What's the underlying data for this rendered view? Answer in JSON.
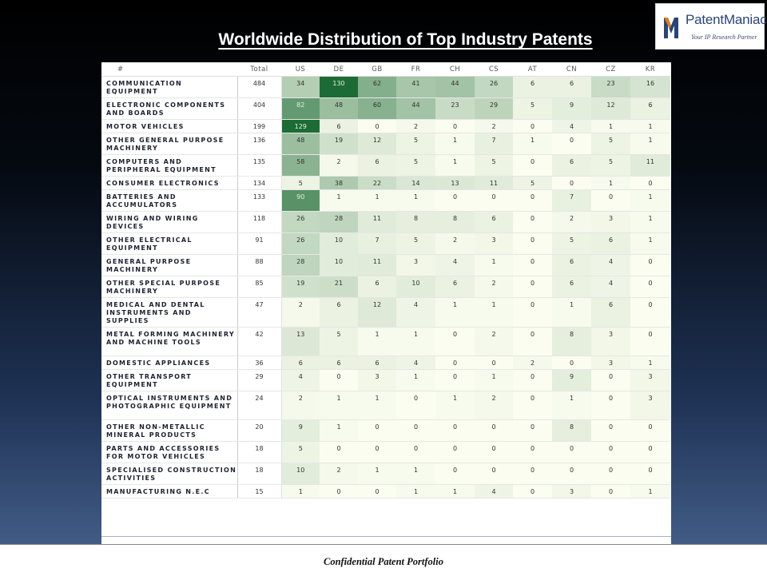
{
  "title": "Worldwide Distribution of Top Industry Patents",
  "logo": {
    "name": "PatentManiac",
    "tagline": "Your IP Research Partner"
  },
  "footer": "Confidential Patent Portfolio",
  "chart_data": {
    "type": "table",
    "title": "Worldwide Distribution of Top Industry Patents",
    "corner_header": "#",
    "total_header": "Total",
    "columns": [
      "US",
      "DE",
      "GB",
      "FR",
      "CH",
      "CS",
      "AT",
      "CN",
      "CZ",
      "KR"
    ],
    "rows": [
      {
        "industry": "COMMUNICATION EQUIPMENT",
        "total": "484",
        "values": [
          34,
          130,
          62,
          41,
          44,
          26,
          6,
          6,
          23,
          16
        ]
      },
      {
        "industry": "ELECTRONIC COMPONENTS AND BOARDS",
        "total": "404",
        "values": [
          82,
          48,
          60,
          44,
          23,
          29,
          5,
          9,
          12,
          6
        ]
      },
      {
        "industry": "MOTOR VEHICLES",
        "total": "199",
        "values": [
          129,
          6,
          0,
          2,
          0,
          2,
          0,
          4,
          1,
          1
        ]
      },
      {
        "industry": "OTHER GENERAL PURPOSE MACHINERY",
        "total": "136",
        "values": [
          48,
          19,
          12,
          5,
          1,
          7,
          1,
          0,
          5,
          1
        ]
      },
      {
        "industry": "COMPUTERS AND PERIPHERAL EQUIPMENT",
        "total": "135",
        "values": [
          58,
          2,
          6,
          5,
          1,
          5,
          0,
          6,
          5,
          11
        ]
      },
      {
        "industry": "CONSUMER ELECTRONICS",
        "total": "134",
        "values": [
          5,
          38,
          22,
          14,
          13,
          11,
          5,
          0,
          1,
          0
        ]
      },
      {
        "industry": "BATTERIES AND ACCUMULATORS",
        "total": "133",
        "values": [
          90,
          1,
          1,
          1,
          0,
          0,
          0,
          7,
          0,
          1
        ]
      },
      {
        "industry": "WIRING AND WIRING DEVICES",
        "total": "118",
        "values": [
          26,
          28,
          11,
          8,
          8,
          6,
          0,
          2,
          3,
          1
        ]
      },
      {
        "industry": "OTHER ELECTRICAL EQUIPMENT",
        "total": "91",
        "values": [
          26,
          10,
          7,
          5,
          2,
          3,
          0,
          5,
          6,
          1
        ]
      },
      {
        "industry": "GENERAL PURPOSE MACHINERY",
        "total": "88",
        "values": [
          28,
          10,
          11,
          3,
          4,
          1,
          0,
          6,
          4,
          0
        ]
      },
      {
        "industry": "OTHER SPECIAL PURPOSE MACHINERY",
        "total": "85",
        "values": [
          19,
          21,
          6,
          10,
          6,
          2,
          0,
          6,
          4,
          0
        ]
      },
      {
        "industry": "MEDICAL AND DENTAL INSTRUMENTS AND SUPPLIES",
        "total": "47",
        "values": [
          2,
          6,
          12,
          4,
          1,
          1,
          0,
          1,
          6,
          0
        ]
      },
      {
        "industry": "METAL FORMING MACHINERY AND MACHINE TOOLS",
        "total": "42",
        "values": [
          13,
          5,
          1,
          1,
          0,
          2,
          0,
          8,
          3,
          0
        ]
      },
      {
        "industry": "DOMESTIC APPLIANCES",
        "total": "36",
        "values": [
          6,
          6,
          6,
          4,
          0,
          0,
          2,
          0,
          3,
          1
        ]
      },
      {
        "industry": "OTHER TRANSPORT EQUIPMENT",
        "total": "29",
        "values": [
          4,
          0,
          3,
          1,
          0,
          1,
          0,
          9,
          0,
          3
        ]
      },
      {
        "industry": "OPTICAL INSTRUMENTS AND PHOTOGRAPHIC EQUIPMENT",
        "total": "24",
        "values": [
          2,
          1,
          1,
          0,
          1,
          2,
          0,
          1,
          0,
          3
        ]
      },
      {
        "industry": "OTHER NON-METALLIC MINERAL PRODUCTS",
        "total": "20",
        "values": [
          9,
          1,
          0,
          0,
          0,
          0,
          0,
          8,
          0,
          0
        ]
      },
      {
        "industry": "PARTS AND ACCESSORIES FOR MOTOR VEHICLES",
        "total": "18",
        "values": [
          5,
          0,
          0,
          0,
          0,
          0,
          0,
          0,
          0,
          0
        ]
      },
      {
        "industry": "SPECIALISED CONSTRUCTION ACTIVITIES",
        "total": "18",
        "values": [
          10,
          2,
          1,
          1,
          0,
          0,
          0,
          0,
          0,
          0
        ]
      },
      {
        "industry": "MANUFACTURING N.E.C",
        "total": "15",
        "values": [
          1,
          0,
          0,
          1,
          1,
          4,
          0,
          3,
          0,
          1
        ]
      }
    ],
    "color_scale": {
      "low": "#fbfdf0",
      "high": "#1c6b34"
    }
  }
}
